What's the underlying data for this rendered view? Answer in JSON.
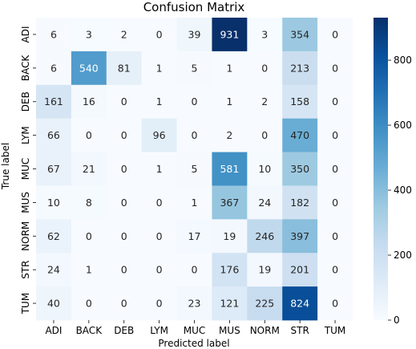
{
  "chart_data": {
    "type": "heatmap",
    "title": "Confusion Matrix",
    "xlabel": "Predicted label",
    "ylabel": "True label",
    "x_categories": [
      "ADI",
      "BACK",
      "DEB",
      "LYM",
      "MUC",
      "MUS",
      "NORM",
      "STR",
      "TUM"
    ],
    "y_categories": [
      "ADI",
      "BACK",
      "DEB",
      "LYM",
      "MUC",
      "MUS",
      "NORM",
      "STR",
      "TUM"
    ],
    "values": [
      [
        6,
        3,
        2,
        0,
        39,
        931,
        3,
        354,
        0
      ],
      [
        6,
        540,
        81,
        1,
        5,
        1,
        0,
        213,
        0
      ],
      [
        161,
        16,
        0,
        1,
        0,
        1,
        2,
        158,
        0
      ],
      [
        66,
        0,
        0,
        96,
        0,
        2,
        0,
        470,
        0
      ],
      [
        67,
        21,
        0,
        1,
        5,
        581,
        10,
        350,
        0
      ],
      [
        10,
        8,
        0,
        0,
        1,
        367,
        24,
        182,
        0
      ],
      [
        62,
        0,
        0,
        0,
        17,
        19,
        246,
        397,
        0
      ],
      [
        24,
        1,
        0,
        0,
        0,
        176,
        19,
        201,
        0
      ],
      [
        40,
        0,
        0,
        0,
        23,
        121,
        225,
        824,
        0
      ]
    ],
    "colormap": "Blues",
    "colorbar": {
      "range": [
        0,
        931
      ],
      "ticks": [
        0,
        200,
        400,
        600,
        800
      ]
    }
  }
}
